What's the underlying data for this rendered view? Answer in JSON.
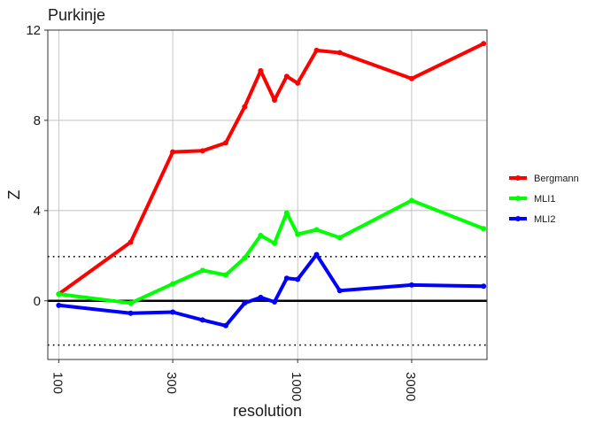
{
  "chart_data": {
    "type": "line",
    "title": "Purkinje",
    "xlabel": "resolution",
    "ylabel": "Z",
    "x_scale": "log10",
    "xlim": [
      90,
      6200
    ],
    "ylim": [
      -2.6,
      12
    ],
    "x_ticks": [
      100,
      300,
      1000,
      3000
    ],
    "x_tick_labels": [
      "100",
      "300",
      "1000",
      "3000"
    ],
    "y_ticks": [
      0,
      4,
      8,
      12
    ],
    "y_tick_labels": [
      "0",
      "4",
      "8",
      "12"
    ],
    "grid": true,
    "reference_lines": [
      {
        "y": 0,
        "style": "solid"
      },
      {
        "y": 1.96,
        "style": "dotted"
      },
      {
        "y": -1.96,
        "style": "dotted"
      }
    ],
    "legend_position": "right",
    "x": [
      100,
      200,
      300,
      400,
      500,
      600,
      700,
      800,
      900,
      1000,
      1200,
      1500,
      3000,
      6000
    ],
    "series": [
      {
        "name": "Bergmann",
        "color": "#ff0000",
        "values": [
          0.3,
          2.6,
          6.6,
          6.65,
          7.0,
          8.6,
          10.2,
          8.9,
          9.95,
          9.65,
          11.1,
          11.0,
          9.85,
          11.4
        ]
      },
      {
        "name": "MLI1",
        "color": "#00ff00",
        "values": [
          0.3,
          -0.1,
          0.75,
          1.35,
          1.15,
          1.9,
          2.9,
          2.55,
          3.9,
          2.95,
          3.15,
          2.8,
          4.45,
          3.2
        ]
      },
      {
        "name": "MLI2",
        "color": "#0000ff",
        "values": [
          -0.2,
          -0.55,
          -0.5,
          -0.85,
          -1.1,
          -0.1,
          0.15,
          -0.05,
          1.0,
          0.95,
          2.05,
          0.45,
          0.7,
          0.65
        ]
      }
    ]
  }
}
